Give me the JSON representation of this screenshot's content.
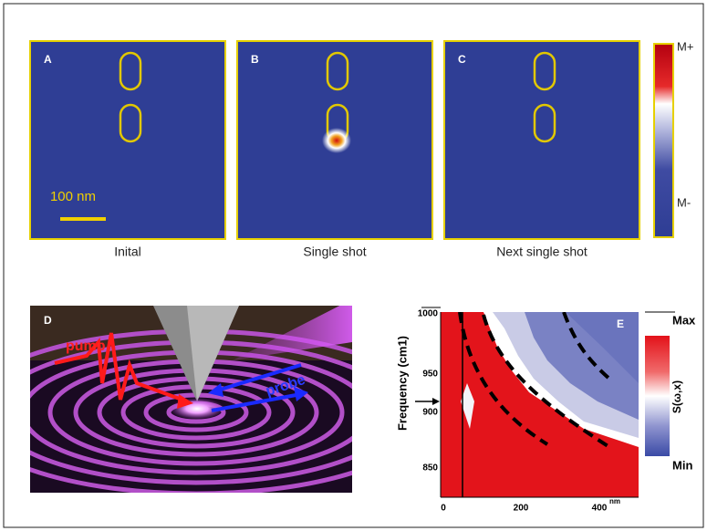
{
  "panels": [
    {
      "label": "A",
      "caption": "Inital"
    },
    {
      "label": "B",
      "caption": "Single shot"
    },
    {
      "label": "C",
      "caption": "Next single shot"
    }
  ],
  "scale_bar": "100 nm",
  "colorbar": {
    "max": "M+",
    "min": "M-"
  },
  "panel_d": {
    "label": "D",
    "pump": "pump",
    "probe": "probe"
  },
  "panel_e": {
    "label": "E",
    "y_label": "Frequency (cm1)",
    "y_ticks": [
      "1000",
      "950",
      "900",
      "850"
    ],
    "x_ticks": [
      "0",
      "200",
      "400"
    ],
    "x_unit": "nm",
    "colorbar": {
      "max": "Max",
      "min": "Min",
      "label": "S(ω,x)"
    }
  }
}
